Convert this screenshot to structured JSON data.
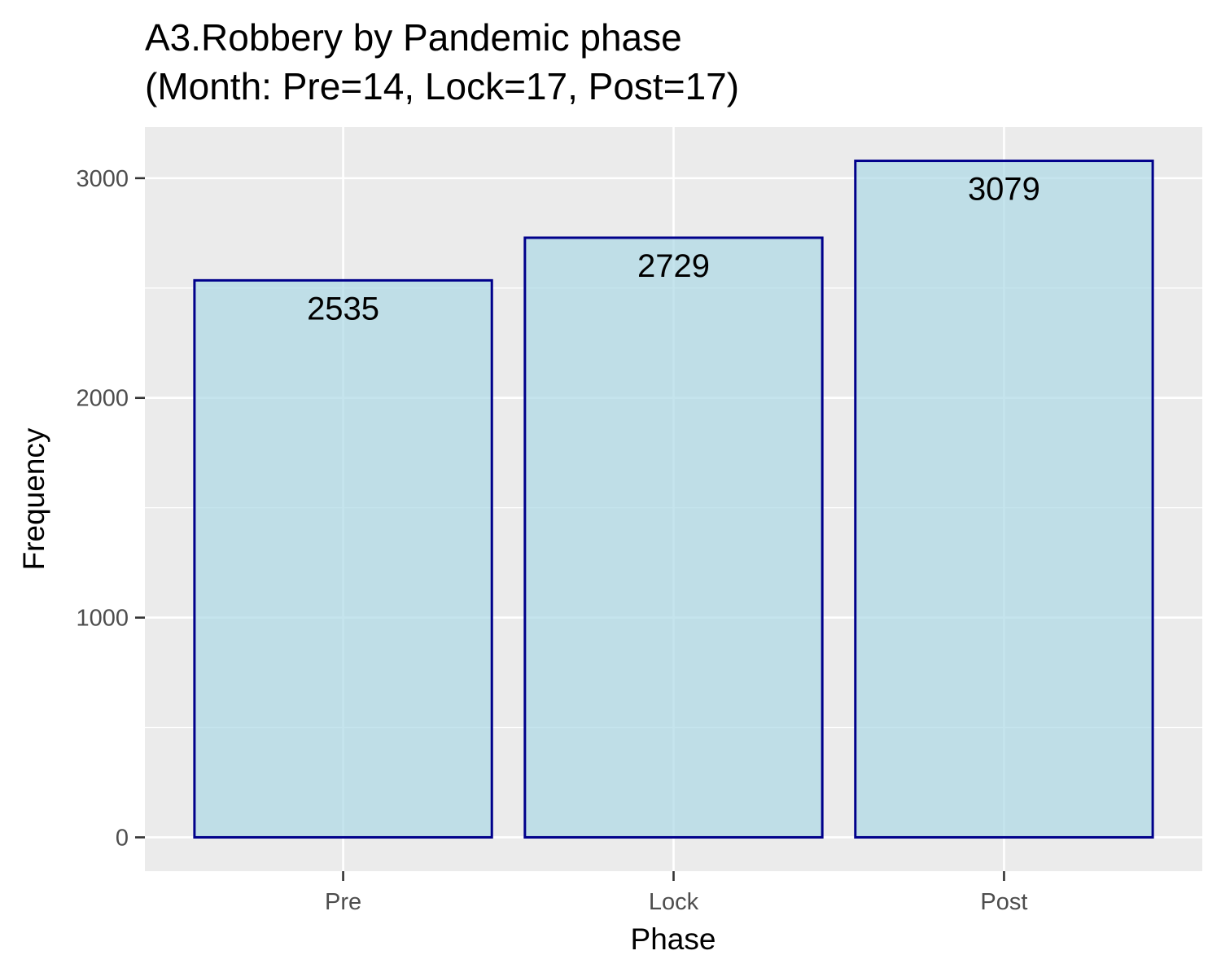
{
  "chart_data": {
    "type": "bar",
    "title_lines": [
      "A3.Robbery by Pandemic phase",
      "(Month: Pre=14, Lock=17, Post=17)"
    ],
    "xlabel": "Phase",
    "ylabel": "Frequency",
    "categories": [
      "Pre",
      "Lock",
      "Post"
    ],
    "values": [
      2535,
      2729,
      3079
    ],
    "data_labels": [
      "2535",
      "2729",
      "3079"
    ],
    "ylim": [
      -153.95,
      3232.95
    ],
    "y_ticks": [
      0,
      1000,
      2000,
      3000
    ],
    "y_tick_labels": [
      "0",
      "1000",
      "2000",
      "3000"
    ],
    "y_minor_ticks": [
      500,
      1500,
      2500
    ],
    "grid": true,
    "legend": "none",
    "colors": {
      "bar_fill": "#add8e6",
      "bar_stroke": "#00008b",
      "panel_bg": "#ebebeb",
      "grid": "#ffffff"
    }
  }
}
